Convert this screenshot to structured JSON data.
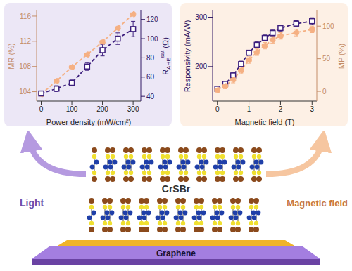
{
  "chart_data": [
    {
      "type": "line",
      "x_label": "Power density (mW/cm²)",
      "y_label": "MR (%)",
      "y2_label": {
        "text": "R",
        "sub": "AHE",
        "sup": "sat",
        "unit": "(Ω)"
      },
      "xlim": [
        -15,
        325
      ],
      "xticks": [
        0,
        100,
        200,
        300
      ],
      "ylim": [
        102.5,
        117
      ],
      "yticks": [
        104,
        108,
        112,
        116
      ],
      "y2lim": [
        35,
        130
      ],
      "y2ticks": [
        40,
        60,
        80,
        100,
        120
      ],
      "x": [
        0,
        50,
        100,
        150,
        200,
        250,
        300
      ],
      "series": [
        {
          "color": "#f5b083",
          "marker": "circle",
          "line_style": "dashed",
          "values": [
            103.6,
            105.7,
            107.9,
            109.9,
            111.9,
            114.1,
            116.3
          ]
        },
        {
          "color": "#3d1f7d",
          "axis": "y2",
          "marker": "square",
          "line_style": "dashed",
          "values": [
            43,
            48,
            54,
            71,
            88,
            100,
            110
          ],
          "errors": [
            2,
            3,
            3,
            4,
            6,
            6,
            8
          ]
        }
      ]
    },
    {
      "type": "line",
      "x_label": "Magnetic field (T)",
      "y_label": "Responsivity (mA/W)",
      "y2_label": "MP (%)",
      "xlim": [
        -0.15,
        3.15
      ],
      "xticks": [
        0,
        1,
        2,
        3
      ],
      "ylim": [
        130,
        315
      ],
      "yticks": [
        200,
        300
      ],
      "y2lim": [
        -15,
        125
      ],
      "y2ticks": [
        0,
        50,
        100
      ],
      "x": [
        0,
        0.25,
        0.5,
        0.75,
        1,
        1.25,
        1.5,
        1.75,
        2,
        2.5,
        3
      ],
      "series": [
        {
          "color": "#3d1f7d",
          "marker": "square",
          "line_style": "dashed",
          "values": [
            155,
            165,
            182,
            205,
            228,
            244,
            258,
            268,
            278,
            287,
            292
          ],
          "errors": [
            5,
            5,
            6,
            6,
            5,
            6,
            6,
            6,
            6,
            6,
            7
          ]
        },
        {
          "color": "#f5b083",
          "axis": "y2",
          "marker": "circle",
          "line_style": "dashed",
          "values": [
            2,
            8,
            18,
            32,
            48,
            60,
            70,
            79,
            85,
            90,
            95
          ],
          "errors": [
            4,
            4,
            5,
            5,
            5,
            5,
            5,
            5,
            5,
            5,
            5
          ]
        }
      ]
    }
  ],
  "diagram": {
    "material": "CrSBr",
    "substrate": "Graphene",
    "left_arrow": "Light",
    "right_arrow": "Magnetic field"
  }
}
